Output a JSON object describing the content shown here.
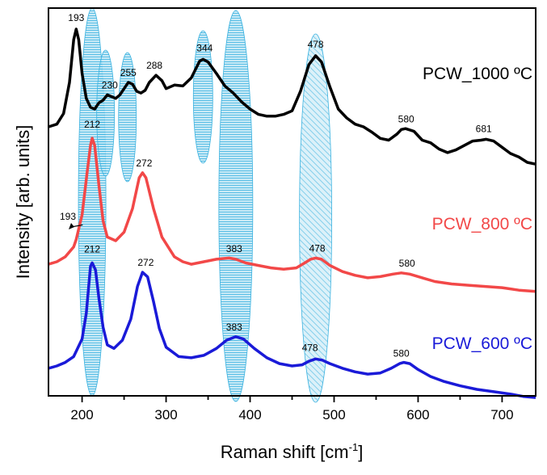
{
  "colors": {
    "series_1000": "#000000",
    "series_800": "#f24848",
    "series_600": "#1a1ad8",
    "band_fill": "#8fd3ec",
    "band_stroke": "#3db3e0",
    "axis": "#000000"
  },
  "chart_data": {
    "type": "line",
    "title": "",
    "xlabel": "Raman shift [cm",
    "xlabel_superscript": "-1",
    "xlabel_suffix": "]",
    "ylabel": "Intensity [arb. units]",
    "xlim": [
      160,
      740
    ],
    "xticks": [
      200,
      300,
      400,
      500,
      600,
      700
    ],
    "yticks_shown": false,
    "grid": false,
    "legend": "inline labels at right of each curve",
    "series": [
      {
        "name": "PCW_1000 ºC",
        "color": "#000000",
        "points": [
          [
            160,
            -0.1
          ],
          [
            170,
            -0.07
          ],
          [
            178,
            0.05
          ],
          [
            185,
            0.4
          ],
          [
            190,
            0.88
          ],
          [
            193,
            1.0
          ],
          [
            196,
            0.88
          ],
          [
            200,
            0.5
          ],
          [
            205,
            0.22
          ],
          [
            210,
            0.12
          ],
          [
            215,
            0.1
          ],
          [
            220,
            0.17
          ],
          [
            225,
            0.2
          ],
          [
            230,
            0.26
          ],
          [
            235,
            0.24
          ],
          [
            240,
            0.22
          ],
          [
            245,
            0.26
          ],
          [
            250,
            0.33
          ],
          [
            255,
            0.4
          ],
          [
            260,
            0.38
          ],
          [
            265,
            0.3
          ],
          [
            270,
            0.28
          ],
          [
            275,
            0.31
          ],
          [
            280,
            0.4
          ],
          [
            288,
            0.48
          ],
          [
            295,
            0.42
          ],
          [
            300,
            0.33
          ],
          [
            310,
            0.37
          ],
          [
            320,
            0.36
          ],
          [
            330,
            0.45
          ],
          [
            340,
            0.64
          ],
          [
            344,
            0.66
          ],
          [
            350,
            0.63
          ],
          [
            360,
            0.5
          ],
          [
            370,
            0.36
          ],
          [
            380,
            0.28
          ],
          [
            390,
            0.18
          ],
          [
            400,
            0.1
          ],
          [
            410,
            0.04
          ],
          [
            420,
            0.02
          ],
          [
            430,
            0.02
          ],
          [
            440,
            0.04
          ],
          [
            450,
            0.08
          ],
          [
            460,
            0.3
          ],
          [
            470,
            0.6
          ],
          [
            478,
            0.7
          ],
          [
            485,
            0.63
          ],
          [
            495,
            0.35
          ],
          [
            505,
            0.1
          ],
          [
            515,
            0.0
          ],
          [
            525,
            -0.07
          ],
          [
            535,
            -0.1
          ],
          [
            545,
            -0.16
          ],
          [
            555,
            -0.23
          ],
          [
            565,
            -0.25
          ],
          [
            575,
            -0.18
          ],
          [
            580,
            -0.13
          ],
          [
            585,
            -0.12
          ],
          [
            595,
            -0.15
          ],
          [
            605,
            -0.25
          ],
          [
            615,
            -0.28
          ],
          [
            625,
            -0.35
          ],
          [
            635,
            -0.39
          ],
          [
            645,
            -0.36
          ],
          [
            655,
            -0.31
          ],
          [
            665,
            -0.26
          ],
          [
            675,
            -0.25
          ],
          [
            681,
            -0.24
          ],
          [
            690,
            -0.26
          ],
          [
            700,
            -0.33
          ],
          [
            710,
            -0.4
          ],
          [
            720,
            -0.44
          ],
          [
            730,
            -0.5
          ],
          [
            740,
            -0.52
          ]
        ],
        "peak_labels": [
          193,
          230,
          255,
          288,
          344,
          478,
          580,
          681
        ]
      },
      {
        "name": "PCW_800 ºC",
        "color": "#f24848",
        "points": [
          [
            160,
            -0.02
          ],
          [
            170,
            0.0
          ],
          [
            180,
            0.04
          ],
          [
            190,
            0.12
          ],
          [
            193,
            0.18
          ],
          [
            200,
            0.38
          ],
          [
            206,
            0.72
          ],
          [
            210,
            0.94
          ],
          [
            212,
            1.0
          ],
          [
            215,
            0.94
          ],
          [
            220,
            0.62
          ],
          [
            225,
            0.33
          ],
          [
            230,
            0.2
          ],
          [
            240,
            0.17
          ],
          [
            250,
            0.24
          ],
          [
            260,
            0.43
          ],
          [
            268,
            0.68
          ],
          [
            272,
            0.72
          ],
          [
            276,
            0.68
          ],
          [
            285,
            0.43
          ],
          [
            295,
            0.2
          ],
          [
            310,
            0.04
          ],
          [
            320,
            0.0
          ],
          [
            330,
            -0.02
          ],
          [
            345,
            0.0
          ],
          [
            360,
            0.02
          ],
          [
            375,
            0.03
          ],
          [
            383,
            0.02
          ],
          [
            395,
            -0.01
          ],
          [
            410,
            -0.03
          ],
          [
            425,
            -0.05
          ],
          [
            440,
            -0.06
          ],
          [
            455,
            -0.05
          ],
          [
            465,
            -0.01
          ],
          [
            472,
            0.02
          ],
          [
            478,
            0.03
          ],
          [
            485,
            0.02
          ],
          [
            495,
            -0.03
          ],
          [
            510,
            -0.08
          ],
          [
            525,
            -0.11
          ],
          [
            540,
            -0.13
          ],
          [
            555,
            -0.12
          ],
          [
            570,
            -0.1
          ],
          [
            580,
            -0.09
          ],
          [
            590,
            -0.1
          ],
          [
            605,
            -0.13
          ],
          [
            620,
            -0.16
          ],
          [
            640,
            -0.18
          ],
          [
            660,
            -0.19
          ],
          [
            680,
            -0.2
          ],
          [
            700,
            -0.21
          ],
          [
            720,
            -0.23
          ],
          [
            740,
            -0.24
          ]
        ],
        "peak_labels": [
          193,
          212,
          272,
          383,
          478,
          580
        ]
      },
      {
        "name": "PCW_600 ºC",
        "color": "#1a1ad8",
        "points": [
          [
            160,
            -0.02
          ],
          [
            170,
            0.0
          ],
          [
            180,
            0.03
          ],
          [
            190,
            0.08
          ],
          [
            200,
            0.23
          ],
          [
            205,
            0.45
          ],
          [
            210,
            0.85
          ],
          [
            212,
            0.88
          ],
          [
            216,
            0.82
          ],
          [
            220,
            0.58
          ],
          [
            225,
            0.33
          ],
          [
            230,
            0.18
          ],
          [
            238,
            0.15
          ],
          [
            248,
            0.22
          ],
          [
            258,
            0.4
          ],
          [
            266,
            0.68
          ],
          [
            272,
            0.8
          ],
          [
            278,
            0.76
          ],
          [
            285,
            0.55
          ],
          [
            292,
            0.32
          ],
          [
            300,
            0.16
          ],
          [
            315,
            0.08
          ],
          [
            330,
            0.07
          ],
          [
            345,
            0.09
          ],
          [
            360,
            0.15
          ],
          [
            372,
            0.22
          ],
          [
            383,
            0.25
          ],
          [
            392,
            0.23
          ],
          [
            405,
            0.15
          ],
          [
            420,
            0.07
          ],
          [
            435,
            0.02
          ],
          [
            450,
            0.0
          ],
          [
            462,
            0.01
          ],
          [
            470,
            0.04
          ],
          [
            478,
            0.06
          ],
          [
            486,
            0.05
          ],
          [
            495,
            0.02
          ],
          [
            510,
            -0.02
          ],
          [
            525,
            -0.05
          ],
          [
            540,
            -0.07
          ],
          [
            555,
            -0.06
          ],
          [
            568,
            -0.02
          ],
          [
            578,
            0.02
          ],
          [
            583,
            0.03
          ],
          [
            590,
            0.02
          ],
          [
            600,
            -0.03
          ],
          [
            615,
            -0.09
          ],
          [
            630,
            -0.13
          ],
          [
            650,
            -0.17
          ],
          [
            670,
            -0.2
          ],
          [
            690,
            -0.22
          ],
          [
            710,
            -0.24
          ],
          [
            725,
            -0.26
          ],
          [
            740,
            -0.27
          ]
        ],
        "peak_labels": [
          212,
          272,
          383,
          478,
          580
        ]
      }
    ],
    "annotations": [
      {
        "text": "193",
        "series": "PCW_1000 ºC",
        "x": 193
      },
      {
        "text": "230",
        "series": "PCW_1000 ºC",
        "x": 230
      },
      {
        "text": "255",
        "series": "PCW_1000 ºC",
        "x": 255
      },
      {
        "text": "288",
        "series": "PCW_1000 ºC",
        "x": 288
      },
      {
        "text": "344",
        "series": "PCW_1000 ºC",
        "x": 344
      },
      {
        "text": "478",
        "series": "PCW_1000 ºC",
        "x": 478
      },
      {
        "text": "580",
        "series": "PCW_1000 ºC",
        "x": 580
      },
      {
        "text": "681",
        "series": "PCW_1000 ºC",
        "x": 681
      },
      {
        "text": "212",
        "series": "PCW_800 ºC",
        "x": 212
      },
      {
        "text": "272",
        "series": "PCW_800 ºC",
        "x": 272
      },
      {
        "text": "383",
        "series": "PCW_800 ºC",
        "x": 383
      },
      {
        "text": "478",
        "series": "PCW_800 ºC",
        "x": 478
      },
      {
        "text": "580",
        "series": "PCW_800 ºC",
        "x": 580
      },
      {
        "text": "193",
        "series": "PCW_800 ºC",
        "x": 193,
        "arrow": true
      },
      {
        "text": "212",
        "series": "PCW_600 ºC",
        "x": 212
      },
      {
        "text": "272",
        "series": "PCW_600 ºC",
        "x": 272
      },
      {
        "text": "383",
        "series": "PCW_600 ºC",
        "x": 383
      },
      {
        "text": "478",
        "series": "PCW_600 ºC",
        "x": 478
      },
      {
        "text": "580",
        "series": "PCW_600 ºC",
        "x": 580
      }
    ],
    "highlight_bands": [
      212,
      228,
      254,
      344,
      383,
      478
    ]
  }
}
